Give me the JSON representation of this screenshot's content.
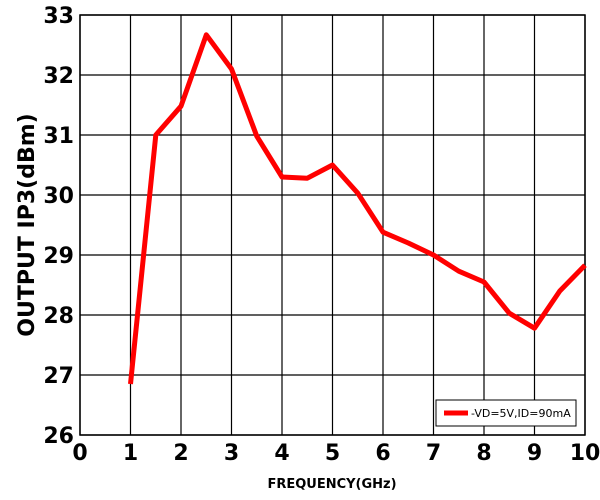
{
  "chart_data": {
    "type": "line",
    "title": "",
    "xlabel": "FREQUENCY(GHz)",
    "ylabel": "OUTPUT IP3(dBm)",
    "xlim": [
      0,
      10
    ],
    "ylim": [
      26,
      33
    ],
    "x_ticks": [
      "0",
      "1",
      "2",
      "3",
      "4",
      "5",
      "6",
      "7",
      "8",
      "9",
      "10"
    ],
    "y_ticks": [
      "26",
      "27",
      "28",
      "29",
      "30",
      "31",
      "32",
      "33"
    ],
    "grid": true,
    "legend_position": "bottom-right",
    "series": [
      {
        "name": "-VD=5V,ID=90mA",
        "color": "#ff0000",
        "x": [
          1,
          1.5,
          2,
          2.5,
          3,
          3.5,
          4,
          4.5,
          5,
          5.5,
          6,
          6.5,
          7,
          7.5,
          8,
          8.5,
          9,
          9.5,
          10
        ],
        "y": [
          26.85,
          31.0,
          31.48,
          32.67,
          32.1,
          30.98,
          30.3,
          30.28,
          30.5,
          30.03,
          29.38,
          29.2,
          29.0,
          28.73,
          28.55,
          28.03,
          27.78,
          28.4,
          28.83
        ]
      }
    ]
  }
}
